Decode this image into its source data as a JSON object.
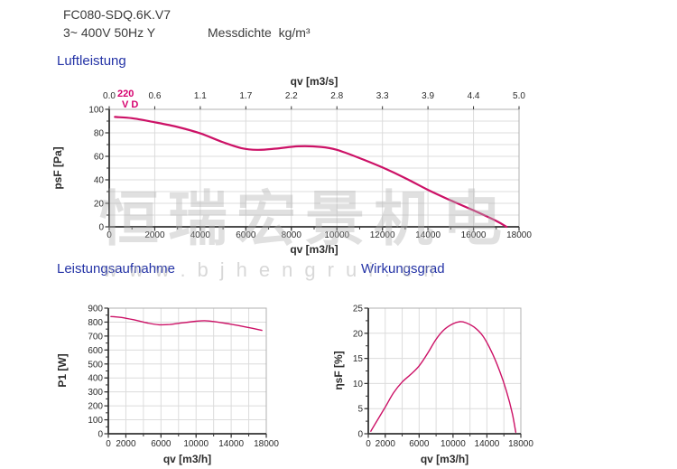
{
  "header": {
    "model": "FC080-SDQ.6K.V7",
    "power_line": "3~ 400V 50Hz Y",
    "density_label": "Messdichte  kg/m³"
  },
  "sections": {
    "airflow": "Luftleistung",
    "power": "Leistungsaufnahme",
    "efficiency": "Wirkungsgrad"
  },
  "watermark": {
    "cjk": "恒瑞宏景机电",
    "url": "www.bjhengrui.cn"
  },
  "colors": {
    "curve": "#cc1166",
    "curve_label": "#d6006e",
    "title_blue": "#2433a6",
    "axis": "#333333",
    "tick_text": "#2b2b2b",
    "grid": "#dcdcdc",
    "border": "#b0b0b0",
    "header_text": "#3c3c3c"
  },
  "chart_data": [
    {
      "id": "luftleistung",
      "type": "line",
      "title": "Luftleistung",
      "xlabel": "qv [m3/h]",
      "ylabel": "psF [Pa]",
      "x2label": "qv [m3/s]",
      "xlim": [
        0,
        18000
      ],
      "ylim": [
        0,
        100
      ],
      "xticks": [
        0,
        2000,
        4000,
        6000,
        8000,
        10000,
        12000,
        14000,
        16000,
        18000
      ],
      "xtick_labels": [
        "0",
        "2000",
        "4000",
        "6000",
        "8000",
        "10000",
        "12000",
        "14000",
        "16000",
        "18000"
      ],
      "x2tick_labels": [
        "0.0",
        "0.6",
        "1.1",
        "1.7",
        "2.2",
        "2.8",
        "3.3",
        "3.9",
        "4.4",
        "5.0"
      ],
      "yticks": [
        0,
        20,
        40,
        60,
        80,
        100
      ],
      "x_minor_step": 1000,
      "y_minor_step": 10,
      "grid_x_step": 2000,
      "grid_y_step": 10,
      "curve_label": "220",
      "curve_sublabel": "V D",
      "grid": true,
      "legend": "none",
      "series": [
        {
          "name": "psF",
          "x": [
            250,
            1000,
            2000,
            3000,
            4000,
            5000,
            5800,
            6500,
            7300,
            8300,
            9300,
            10000,
            11000,
            12000,
            13000,
            14000,
            15000,
            16000,
            17000,
            17450
          ],
          "y": [
            93.5,
            92.5,
            89,
            85,
            79.5,
            72,
            67,
            65.5,
            66.5,
            68.5,
            68,
            65.5,
            58.5,
            50.5,
            41.5,
            31.5,
            22.5,
            14,
            5,
            0
          ]
        }
      ]
    },
    {
      "id": "leistungsaufnahme",
      "type": "line",
      "title": "Leistungsaufnahme",
      "xlabel": "qv [m3/h]",
      "ylabel": "P1 [W]",
      "xlim": [
        0,
        18000
      ],
      "ylim": [
        0,
        900
      ],
      "xticks": [
        0,
        2000,
        6000,
        10000,
        14000,
        18000
      ],
      "xtick_labels": [
        "0",
        "2000",
        "6000",
        "10000",
        "14000",
        "18000"
      ],
      "yticks": [
        0,
        100,
        200,
        300,
        400,
        500,
        600,
        700,
        800,
        900
      ],
      "x_minor_step": 2000,
      "y_minor_step": 50,
      "grid_x_step": 2000,
      "grid_y_step": 100,
      "grid": true,
      "legend": "none",
      "series": [
        {
          "name": "P1",
          "x": [
            300,
            1500,
            3000,
            4500,
            5800,
            7000,
            8500,
            10000,
            11000,
            12000,
            13500,
            15000,
            16500,
            17500
          ],
          "y": [
            840,
            833,
            815,
            793,
            781,
            783,
            795,
            806,
            810,
            804,
            790,
            773,
            755,
            741
          ]
        }
      ]
    },
    {
      "id": "wirkungsgrad",
      "type": "line",
      "title": "Wirkungsgrad",
      "xlabel": "qv [m3/h]",
      "ylabel": "ηsF [%]",
      "xlim": [
        0,
        18000
      ],
      "ylim": [
        0,
        25
      ],
      "xticks": [
        0,
        2000,
        6000,
        10000,
        14000,
        18000
      ],
      "xtick_labels": [
        "0",
        "2000",
        "6000",
        "10000",
        "14000",
        "18000"
      ],
      "yticks": [
        0,
        5,
        10,
        15,
        20,
        25
      ],
      "x_minor_step": 2000,
      "y_minor_step": 2.5,
      "grid_x_step": 2000,
      "grid_y_step": 5,
      "grid": true,
      "legend": "none",
      "series": [
        {
          "name": "etasF",
          "x": [
            300,
            1000,
            2000,
            3000,
            4000,
            5000,
            6000,
            7000,
            8000,
            9000,
            10000,
            10800,
            11500,
            12500,
            13500,
            14500,
            15500,
            16300,
            17000,
            17400
          ],
          "y": [
            0.5,
            2.5,
            5.3,
            8.2,
            10.3,
            11.8,
            13.5,
            16,
            18.8,
            20.8,
            21.9,
            22.3,
            22.1,
            21.2,
            19.5,
            16.5,
            12.5,
            8.5,
            4,
            0.3
          ]
        }
      ]
    }
  ]
}
